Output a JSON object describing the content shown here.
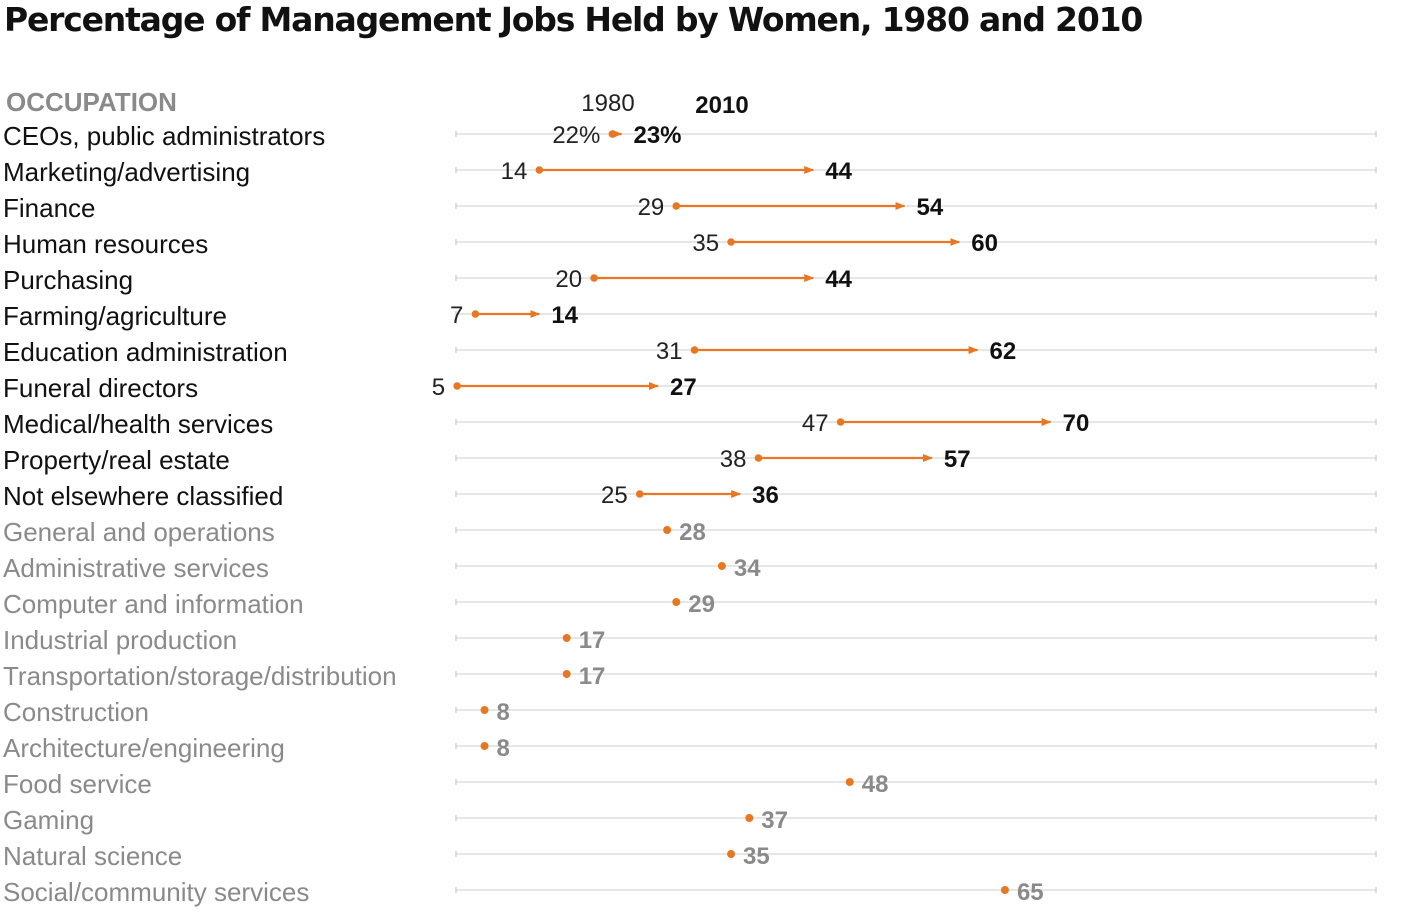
{
  "chart_data": {
    "type": "dumbbell",
    "title": "Percentage of Management Jobs Held by Women, 1980 and 2010",
    "category_header": "OCCUPATION",
    "legend": {
      "start_label": "1980",
      "end_label": "2010"
    },
    "xlim": [
      0,
      100
    ],
    "grid": true,
    "accent_color": "#e87722",
    "changed": [
      {
        "label": "CEOs, public administrators",
        "y1980": 22,
        "y2010": 23,
        "y1980_text": "22%",
        "y2010_text": "23%"
      },
      {
        "label": "Marketing/advertising",
        "y1980": 14,
        "y2010": 44,
        "y1980_text": "14",
        "y2010_text": "44"
      },
      {
        "label": "Finance",
        "y1980": 29,
        "y2010": 54,
        "y1980_text": "29",
        "y2010_text": "54"
      },
      {
        "label": "Human resources",
        "y1980": 35,
        "y2010": 60,
        "y1980_text": "35",
        "y2010_text": "60"
      },
      {
        "label": "Purchasing",
        "y1980": 20,
        "y2010": 44,
        "y1980_text": "20",
        "y2010_text": "44"
      },
      {
        "label": "Farming/agriculture",
        "y1980": 7,
        "y2010": 14,
        "y1980_text": "7",
        "y2010_text": "14"
      },
      {
        "label": "Education administration",
        "y1980": 31,
        "y2010": 62,
        "y1980_text": "31",
        "y2010_text": "62"
      },
      {
        "label": "Funeral directors",
        "y1980": 5,
        "y2010": 27,
        "y1980_text": "5",
        "y2010_text": "27"
      },
      {
        "label": "Medical/health services",
        "y1980": 47,
        "y2010": 70,
        "y1980_text": "47",
        "y2010_text": "70"
      },
      {
        "label": "Property/real estate",
        "y1980": 38,
        "y2010": 57,
        "y1980_text": "38",
        "y2010_text": "57"
      },
      {
        "label": "Not elsewhere classified",
        "y1980": 25,
        "y2010": 36,
        "y1980_text": "25",
        "y2010_text": "36"
      }
    ],
    "single": [
      {
        "label": "General and operations",
        "y2010": 28,
        "y2010_text": "28"
      },
      {
        "label": "Administrative services",
        "y2010": 34,
        "y2010_text": "34"
      },
      {
        "label": "Computer and information",
        "y2010": 29,
        "y2010_text": "29"
      },
      {
        "label": "Industrial production",
        "y2010": 17,
        "y2010_text": "17"
      },
      {
        "label": "Transportation/storage/distribution",
        "y2010": 17,
        "y2010_text": "17"
      },
      {
        "label": "Construction",
        "y2010": 8,
        "y2010_text": "8"
      },
      {
        "label": "Architecture/engineering",
        "y2010": 8,
        "y2010_text": "8"
      },
      {
        "label": "Food service",
        "y2010": 48,
        "y2010_text": "48"
      },
      {
        "label": "Gaming",
        "y2010": 37,
        "y2010_text": "37"
      },
      {
        "label": "Natural science",
        "y2010": 35,
        "y2010_text": "35"
      },
      {
        "label": "Social/community services",
        "y2010": 65,
        "y2010_text": "65"
      }
    ]
  }
}
